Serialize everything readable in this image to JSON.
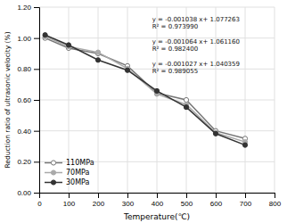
{
  "chart_data": {
    "type": "line",
    "xlabel": "Temperature(℃)",
    "ylabel": "Reduction ratio of ultrasonic velocity (%)",
    "xlim": [
      0,
      800
    ],
    "ylim": [
      0.0,
      1.2
    ],
    "xticks": [
      0,
      100,
      200,
      300,
      400,
      500,
      600,
      700,
      800
    ],
    "yticks": [
      {
        "value": 0.0,
        "label": "0.00"
      },
      {
        "value": 0.2,
        "label": "0.20"
      },
      {
        "value": 0.4,
        "label": "0.40"
      },
      {
        "value": 0.6,
        "label": "0.60"
      },
      {
        "value": 0.8,
        "label": "0.80"
      },
      {
        "value": 1.0,
        "label": "1.00"
      },
      {
        "value": 1.2,
        "label": "1.20"
      }
    ],
    "grid": true,
    "legend": "lower left",
    "series": [
      {
        "name": "110MPa",
        "color": "#777777",
        "marker": "open-circle",
        "x": [
          20,
          100,
          200,
          300,
          400,
          500,
          600,
          700
        ],
        "values": [
          1.0,
          0.935,
          0.9,
          0.82,
          0.645,
          0.6,
          0.4,
          0.35
        ]
      },
      {
        "name": "70MPa",
        "color": "#aaaaaa",
        "marker": "circle",
        "x": [
          20,
          100,
          200,
          300,
          400,
          500,
          600,
          700
        ],
        "values": [
          1.01,
          0.945,
          0.908,
          0.803,
          0.638,
          0.57,
          0.388,
          0.328
        ]
      },
      {
        "name": "30MPa",
        "color": "#333333",
        "marker": "circle",
        "x": [
          20,
          100,
          200,
          300,
          400,
          500,
          600,
          700
        ],
        "values": [
          1.02,
          0.955,
          0.858,
          0.792,
          0.658,
          0.553,
          0.382,
          0.308
        ]
      }
    ],
    "annotations": [
      [
        "y = -0.001038 x+ 1.077263",
        "R² = 0.973990"
      ],
      [
        "y = -0.001064 x+ 1.061160",
        "R² = 0.982400"
      ],
      [
        "y = -0.001027 x+ 1.040359",
        "R² = 0.989055"
      ]
    ]
  }
}
